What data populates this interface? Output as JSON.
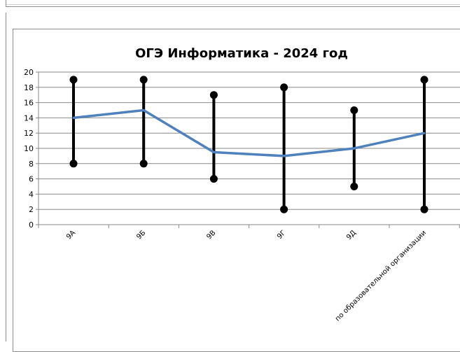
{
  "chart_data": {
    "type": "line",
    "title": "ОГЭ Информатика - 2024 год",
    "categories": [
      "9А",
      "9Б",
      "9В",
      "9Г",
      "9Д",
      "по образовательной организации"
    ],
    "y_ticks": [
      "0",
      "2",
      "4",
      "6",
      "8",
      "10",
      "12",
      "14",
      "16",
      "18",
      "20"
    ],
    "ylim": [
      0,
      20
    ],
    "grid": true,
    "series": [
      {
        "values": [
          14,
          15,
          9.5,
          9,
          10,
          12
        ]
      }
    ],
    "ranges": [
      {
        "min": 8,
        "max": 19
      },
      {
        "min": 8,
        "max": 19
      },
      {
        "min": 6,
        "max": 17
      },
      {
        "min": 2,
        "max": 18
      },
      {
        "min": 5,
        "max": 15
      },
      {
        "min": 2,
        "max": 19
      }
    ],
    "colors": {
      "line": "#4f81bd",
      "range": "#000000",
      "grid": "#898989"
    }
  }
}
